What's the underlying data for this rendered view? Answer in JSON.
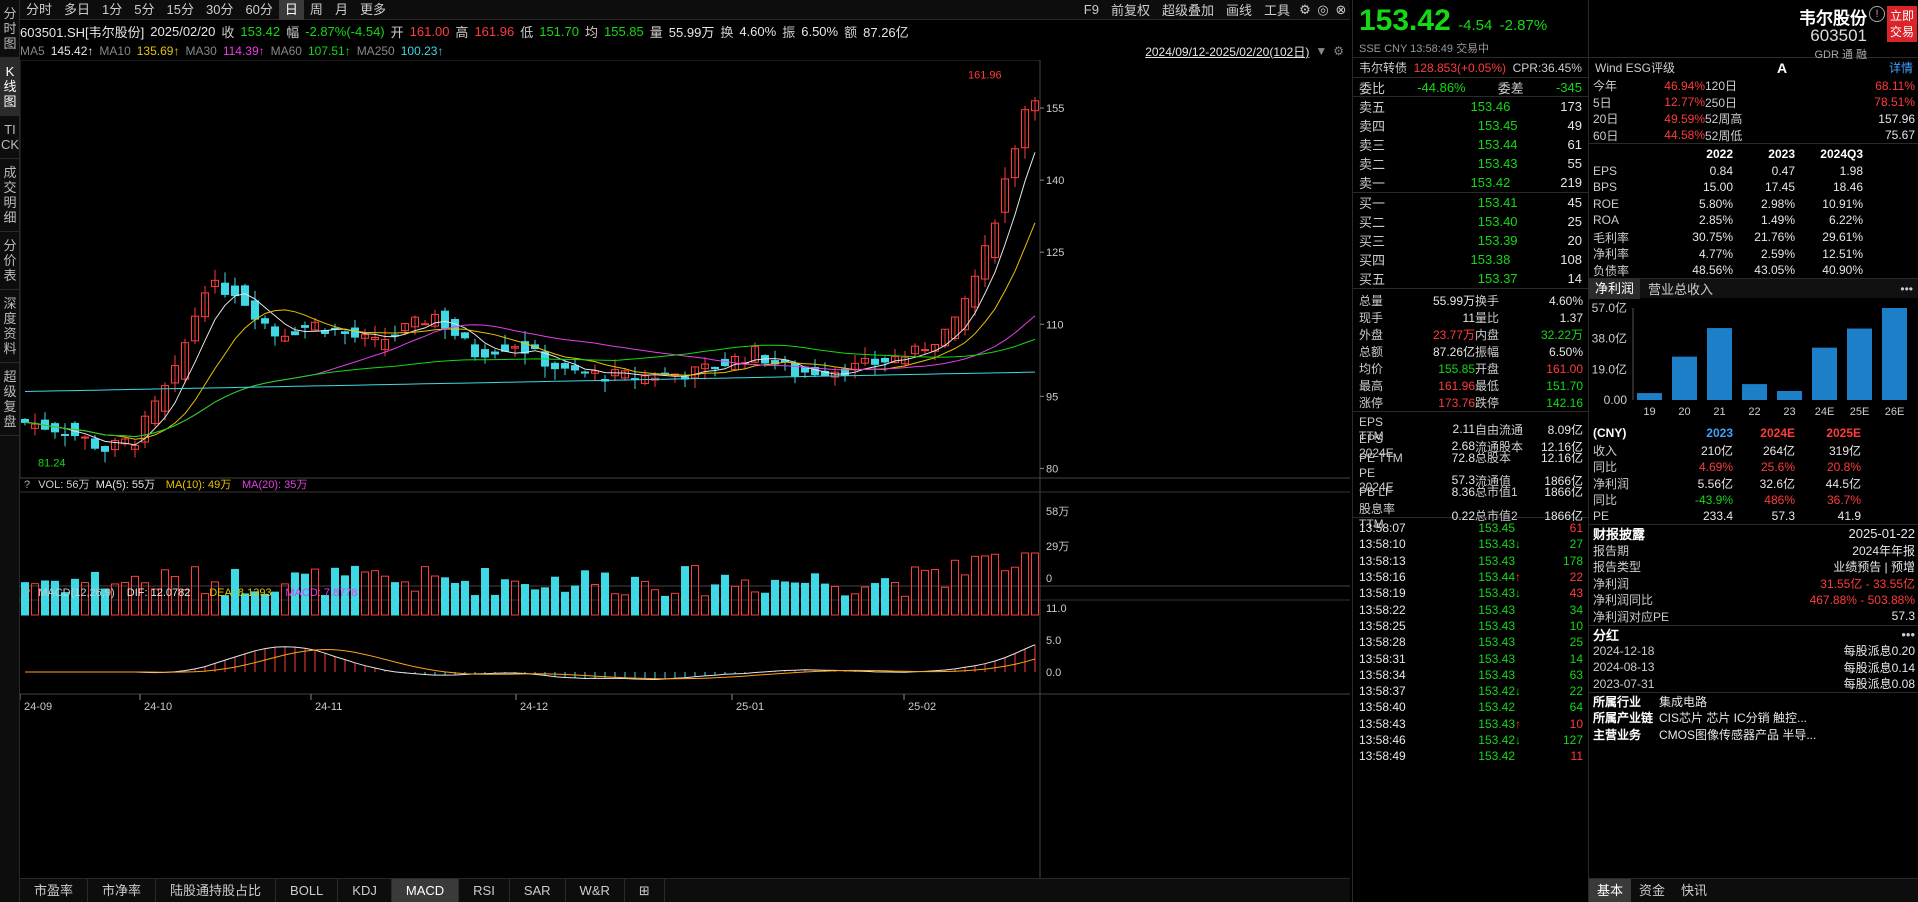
{
  "stock": {
    "code_line": "603501.SH[韦尔股份]",
    "date": "2025/02/20",
    "close_label": "收",
    "close": "153.42",
    "chg_label": "幅",
    "chg": "-2.87%(-4.54)",
    "open_label": "开",
    "open": "161.00",
    "high_label": "高",
    "high": "161.96",
    "low_label": "低",
    "low": "151.70",
    "avg_label": "均",
    "avg": "155.85",
    "vol_label": "量",
    "vol": "55.99万",
    "turn_label": "换",
    "turn": "4.60%",
    "amp_label": "振",
    "amp": "6.50%",
    "amt_label": "额",
    "amt": "87.26亿"
  },
  "period_tabs": [
    "分时",
    "多日",
    "1分",
    "5分",
    "15分",
    "30分",
    "60分",
    "日",
    "周",
    "月",
    "更多"
  ],
  "active_period": "日",
  "toolbar": [
    "F9",
    "前复权",
    "超级叠加",
    "画线",
    "工具"
  ],
  "vtabs": [
    "分时图",
    "K线图",
    "TICK",
    "成交明细",
    "分价表",
    "深度资料",
    "超级复盘"
  ],
  "ma": {
    "ma5_l": "MA5",
    "ma5": "145.42↑",
    "ma10_l": "MA10",
    "ma10": "135.69↑",
    "ma30_l": "MA30",
    "ma30": "114.39↑",
    "ma60_l": "MA60",
    "ma60": "107.51↑",
    "ma250_l": "MA250",
    "ma250": "100.23↑",
    "range": "2024/09/12-2025/02/20(102日)"
  },
  "yticks": [
    "155",
    "140",
    "125",
    "110",
    "95",
    "80"
  ],
  "max_label": "161.96",
  "min_label": "81.24",
  "vol_bar": {
    "q": "?",
    "text": "VOL: 56万",
    "ma5": "MA(5): 55万",
    "ma10": "MA(10): 49万",
    "ma20": "MA(20): 35万",
    "ticks": [
      "58万",
      "29万",
      "0"
    ]
  },
  "macd_bar": {
    "q": "?",
    "text": "MACD(12,26,9)",
    "dif": "DIF: 12.0782",
    "dea": "DEA: 8.1393",
    "macd": "MACD: 7.8778",
    "ticks": [
      "11.0",
      "5.0",
      "0.0"
    ]
  },
  "xticks": [
    "24-09",
    "24-10",
    "24-11",
    "24-12",
    "25-01",
    "25-02"
  ],
  "bottom_tabs": [
    "市盈率",
    "市净率",
    "陆股通持股占比",
    "BOLL",
    "KDJ",
    "MACD",
    "RSI",
    "SAR",
    "W&R"
  ],
  "active_bottom": "MACD",
  "quote": {
    "price": "153.42",
    "chg": "-4.54",
    "pct": "-2.87%",
    "name": "韦尔股份",
    "code": "603501",
    "exch": "SSE",
    "cur": "CNY",
    "time": "13:58:49",
    "status": "交易中",
    "buy": "立即交易",
    "tags": "GDR 通 融"
  },
  "bond": {
    "name": "韦尔转债",
    "val": "128.853(+0.05%)",
    "cpr": "CPR:36.45%"
  },
  "weibi": {
    "l1": "委比",
    "v1": "-44.86%",
    "l2": "委差",
    "v2": "-345"
  },
  "asks": [
    {
      "l": "卖五",
      "p": "153.46",
      "v": "173"
    },
    {
      "l": "卖四",
      "p": "153.45",
      "v": "49"
    },
    {
      "l": "卖三",
      "p": "153.44",
      "v": "61"
    },
    {
      "l": "卖二",
      "p": "153.43",
      "v": "55"
    },
    {
      "l": "卖一",
      "p": "153.42",
      "v": "219"
    }
  ],
  "bids": [
    {
      "l": "买一",
      "p": "153.41",
      "v": "45"
    },
    {
      "l": "买二",
      "p": "153.40",
      "v": "25"
    },
    {
      "l": "买三",
      "p": "153.39",
      "v": "20"
    },
    {
      "l": "买四",
      "p": "153.38",
      "v": "108"
    },
    {
      "l": "买五",
      "p": "153.37",
      "v": "14"
    }
  ],
  "stats": [
    [
      "总量",
      "55.99万",
      "换手",
      "4.60%"
    ],
    [
      "现手",
      "11",
      "量比",
      "1.37"
    ],
    [
      "外盘",
      "23.77万",
      "内盘",
      "32.22万"
    ],
    [
      "总额",
      "87.26亿",
      "振幅",
      "6.50%"
    ],
    [
      "均价",
      "155.85",
      "开盘",
      "161.00"
    ],
    [
      "最高",
      "161.96",
      "最低",
      "151.70"
    ],
    [
      "涨停",
      "173.76",
      "跌停",
      "142.16"
    ]
  ],
  "fund": [
    [
      "EPS TTM",
      "2.11",
      "自由流通",
      "8.09亿"
    ],
    [
      "EPS 2024E",
      "2.68",
      "流通股本",
      "12.16亿"
    ],
    [
      "PE TTM",
      "72.8",
      "总股本",
      "12.16亿"
    ],
    [
      "PE 2024E",
      "57.3",
      "流通值",
      "1866亿"
    ],
    [
      "PB LF",
      "8.36",
      "总市值1",
      "1866亿"
    ],
    [
      "股息率TTM",
      "0.22",
      "总市值2",
      "1866亿"
    ]
  ],
  "ticks": [
    [
      "13:58:07",
      "153.45",
      "61",
      "r",
      ""
    ],
    [
      "13:58:10",
      "153.43",
      "27",
      "g",
      "↓"
    ],
    [
      "13:58:13",
      "153.43",
      "178",
      "g",
      ""
    ],
    [
      "13:58:16",
      "153.44",
      "22",
      "r",
      "↑"
    ],
    [
      "13:58:19",
      "153.43",
      "43",
      "r",
      "↓"
    ],
    [
      "13:58:22",
      "153.43",
      "34",
      "g",
      ""
    ],
    [
      "13:58:25",
      "153.43",
      "10",
      "g",
      ""
    ],
    [
      "13:58:28",
      "153.43",
      "25",
      "g",
      ""
    ],
    [
      "13:58:31",
      "153.43",
      "14",
      "g",
      ""
    ],
    [
      "13:58:34",
      "153.43",
      "63",
      "g",
      ""
    ],
    [
      "13:58:37",
      "153.42",
      "22",
      "g",
      "↓"
    ],
    [
      "13:58:40",
      "153.42",
      "64",
      "g",
      ""
    ],
    [
      "13:58:43",
      "153.43",
      "10",
      "r",
      "↑"
    ],
    [
      "13:58:46",
      "153.42",
      "127",
      "g",
      "↓"
    ],
    [
      "13:58:49",
      "153.42",
      "11",
      "r",
      ""
    ]
  ],
  "esg": {
    "title": "Wind ESG评级",
    "grade": "A",
    "detail": "详情"
  },
  "perf": [
    [
      "今年",
      "46.94%",
      "120日",
      "68.11%"
    ],
    [
      "5日",
      "12.77%",
      "250日",
      "78.51%"
    ],
    [
      "20日",
      "49.59%",
      "52周高",
      "157.96"
    ],
    [
      "60日",
      "44.58%",
      "52周低",
      "75.67"
    ]
  ],
  "ftable": {
    "head": [
      "",
      "2022",
      "2023",
      "2024Q3"
    ],
    "rows": [
      [
        "EPS",
        "0.84",
        "0.47",
        "1.98"
      ],
      [
        "BPS",
        "15.00",
        "17.45",
        "18.46"
      ],
      [
        "ROE",
        "5.80%",
        "2.98%",
        "10.91%"
      ],
      [
        "ROA",
        "2.85%",
        "1.49%",
        "6.22%"
      ],
      [
        "毛利率",
        "30.75%",
        "21.76%",
        "29.61%"
      ],
      [
        "净利率",
        "4.77%",
        "2.59%",
        "12.51%"
      ],
      [
        "负债率",
        "48.56%",
        "43.05%",
        "40.90%"
      ]
    ]
  },
  "bar_tabs": [
    "净利润",
    "营业总收入"
  ],
  "bar_chart": {
    "yticks": [
      "57.0亿",
      "38.0亿",
      "19.0亿",
      "0.00"
    ],
    "x": [
      "19",
      "20",
      "21",
      "22",
      "23",
      "24E",
      "25E",
      "26E"
    ],
    "values": [
      4.3,
      27,
      44.8,
      9.9,
      5.6,
      32.6,
      44.5,
      57.3
    ]
  },
  "est": {
    "head": [
      "(CNY)",
      "2023",
      "2024E",
      "2025E"
    ],
    "rows": [
      [
        "收入",
        "210亿",
        "264亿",
        "319亿"
      ],
      [
        "同比",
        "4.69%",
        "25.6%",
        "20.8%"
      ],
      [
        "净利润",
        "5.56亿",
        "32.6亿",
        "44.5亿"
      ],
      [
        "同比",
        "-43.9%",
        "486%",
        "36.7%"
      ],
      [
        "PE",
        "233.4",
        "57.3",
        "41.9"
      ]
    ]
  },
  "report": {
    "title": "财报披露",
    "date": "2025-01-22",
    "rows": [
      [
        "报告期",
        "2024年年报"
      ],
      [
        "报告类型",
        "业绩预告 | 预增"
      ],
      [
        "净利润",
        "31.55亿 - 33.55亿"
      ],
      [
        "净利润同比",
        "467.88% - 503.88%"
      ],
      [
        "净利润对应PE",
        "57.3"
      ]
    ]
  },
  "div": {
    "title": "分红",
    "rows": [
      [
        "2024-12-18",
        "每股派息0.20"
      ],
      [
        "2024-08-13",
        "每股派息0.14"
      ],
      [
        "2023-07-31",
        "每股派息0.08"
      ]
    ]
  },
  "industry": [
    [
      "所属行业",
      "集成电路"
    ],
    [
      "所属产业链",
      "CIS芯片  芯片  IC分销  触控..."
    ],
    [
      "主营业务",
      "CMOS图像传感器产品  半导..."
    ]
  ],
  "rp_tabs": [
    "基本",
    "资金",
    "快讯"
  ],
  "chart_data": {
    "type": "candlestick",
    "title": "",
    "series": [
      {
        "name": "MA5",
        "value": "145.42"
      },
      {
        "name": "MA10",
        "value": "135.69"
      },
      {
        "name": "MA30",
        "value": "114.39"
      },
      {
        "name": "MA60",
        "value": "107.51"
      },
      {
        "name": "MA250",
        "value": "100.23"
      }
    ],
    "ylim": [
      78,
      165
    ],
    "high": 161.96,
    "low": 81.24
  },
  "colors": {
    "up": "#ff3b3b",
    "down": "#3fd9e6",
    "ma5": "#e6e6e6",
    "ma10": "#e6c300",
    "ma30": "#e63fe6",
    "ma60": "#14d914",
    "ma250": "#3fd9e6"
  }
}
